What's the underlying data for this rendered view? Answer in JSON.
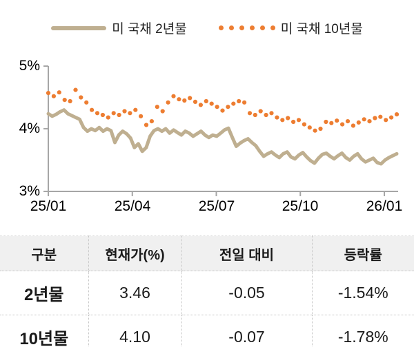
{
  "legend": {
    "items": [
      {
        "label": "미 국채 2년물",
        "swatch": "solid-line",
        "color": "#BFAF90"
      },
      {
        "label": "미 국채 10년물",
        "swatch": "dots",
        "color": "#ED7D31"
      }
    ]
  },
  "chart_data": {
    "type": "line",
    "title": "",
    "xlabel": "",
    "ylabel": "",
    "ylim": [
      3,
      5
    ],
    "grid": false,
    "legend_position": "top",
    "axis_color": "#A6A6A6",
    "y_axis": {
      "min": 3,
      "max": 5,
      "ticks": [
        "5%",
        "4%",
        "3%"
      ],
      "tick_values": [
        5,
        4,
        3
      ]
    },
    "x_axis": {
      "ticks": [
        "25/01",
        "25/04",
        "25/07",
        "25/10",
        "26/01"
      ]
    },
    "series": [
      {
        "name": "미 국채 2년물",
        "style": "solid-line",
        "color": "#BFAF90",
        "values": [
          4.24,
          4.2,
          4.23,
          4.27,
          4.3,
          4.24,
          4.21,
          4.18,
          4.15,
          4.02,
          3.96,
          4.0,
          3.97,
          4.02,
          3.96,
          4.0,
          3.97,
          3.78,
          3.9,
          3.96,
          3.92,
          3.85,
          3.7,
          3.76,
          3.64,
          3.7,
          3.88,
          3.97,
          4.0,
          3.96,
          4.0,
          3.93,
          3.98,
          3.94,
          3.9,
          3.96,
          3.93,
          3.88,
          3.92,
          3.96,
          3.9,
          3.86,
          3.9,
          3.88,
          3.93,
          3.98,
          4.01,
          3.86,
          3.72,
          3.77,
          3.81,
          3.84,
          3.78,
          3.73,
          3.64,
          3.56,
          3.6,
          3.63,
          3.58,
          3.54,
          3.6,
          3.63,
          3.55,
          3.52,
          3.58,
          3.62,
          3.55,
          3.49,
          3.45,
          3.53,
          3.59,
          3.61,
          3.56,
          3.52,
          3.57,
          3.61,
          3.54,
          3.5,
          3.56,
          3.6,
          3.52,
          3.47,
          3.5,
          3.53,
          3.46,
          3.44,
          3.5,
          3.54,
          3.57,
          3.6
        ]
      },
      {
        "name": "미 국채 10년물",
        "style": "dots",
        "color": "#ED7D31",
        "values": [
          4.57,
          4.52,
          4.58,
          4.46,
          4.44,
          4.62,
          4.5,
          4.42,
          4.3,
          4.25,
          4.22,
          4.18,
          4.25,
          4.22,
          4.28,
          4.25,
          4.3,
          4.2,
          4.06,
          4.12,
          4.35,
          4.28,
          4.42,
          4.52,
          4.47,
          4.45,
          4.49,
          4.43,
          4.38,
          4.44,
          4.4,
          4.35,
          4.29,
          4.35,
          4.4,
          4.44,
          4.42,
          4.25,
          4.22,
          4.28,
          4.22,
          4.25,
          4.18,
          4.14,
          4.17,
          4.11,
          4.14,
          4.07,
          4.02,
          3.97,
          4.0,
          4.11,
          4.09,
          4.13,
          4.07,
          4.12,
          4.05,
          4.1,
          4.15,
          4.12,
          4.17,
          4.19,
          4.14,
          4.18,
          4.23
        ]
      }
    ]
  },
  "table": {
    "headers": [
      "구분",
      "현재가(%)",
      "전일 대비",
      "등락률"
    ],
    "rows": [
      [
        "2년물",
        "3.46",
        "-0.05",
        "-1.54%"
      ],
      [
        "10년물",
        "4.10",
        "-0.07",
        "-1.78%"
      ]
    ]
  }
}
